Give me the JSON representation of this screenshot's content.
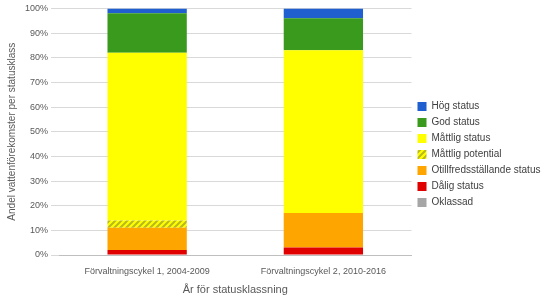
{
  "chart_data": {
    "type": "bar",
    "stacked": true,
    "grid": true,
    "legend": "right",
    "x_label": "År för statusklassning",
    "y_label": "Andel vattenförekomster per statusklass",
    "categories": [
      "Förvaltningscykel 1, 2004-2009",
      "Förvaltningscykel 2, 2010-2016"
    ],
    "ylim": [
      0,
      100
    ],
    "yticks": [
      {
        "value": 0,
        "label": "0%"
      },
      {
        "value": 10,
        "label": "10%"
      },
      {
        "value": 20,
        "label": "20%"
      },
      {
        "value": 30,
        "label": "30%"
      },
      {
        "value": 40,
        "label": "40%"
      },
      {
        "value": 50,
        "label": "50%"
      },
      {
        "value": 60,
        "label": "60%"
      },
      {
        "value": 70,
        "label": "70%"
      },
      {
        "value": 80,
        "label": "80%"
      },
      {
        "value": 90,
        "label": "90%"
      },
      {
        "value": 100,
        "label": "100%"
      }
    ],
    "series": [
      {
        "name": "Oklassad",
        "color": "#a6a6a6",
        "values": [
          0,
          0
        ]
      },
      {
        "name": "Dålig status",
        "color": "#e00000",
        "values": [
          2,
          3
        ]
      },
      {
        "name": "Otillfredsställande status",
        "color": "#ffa500",
        "values": [
          9,
          14
        ]
      },
      {
        "name": "Måttlig potential",
        "color": "#b8b820",
        "marker": "hatch",
        "values": [
          3,
          0
        ]
      },
      {
        "name": "Måttlig status",
        "color": "#ffff00",
        "values": [
          68,
          66
        ]
      },
      {
        "name": "God status",
        "color": "#3a9a1e",
        "values": [
          16,
          13
        ]
      },
      {
        "name": "Hög status",
        "color": "#1f5fd0",
        "values": [
          2,
          4
        ]
      }
    ]
  }
}
